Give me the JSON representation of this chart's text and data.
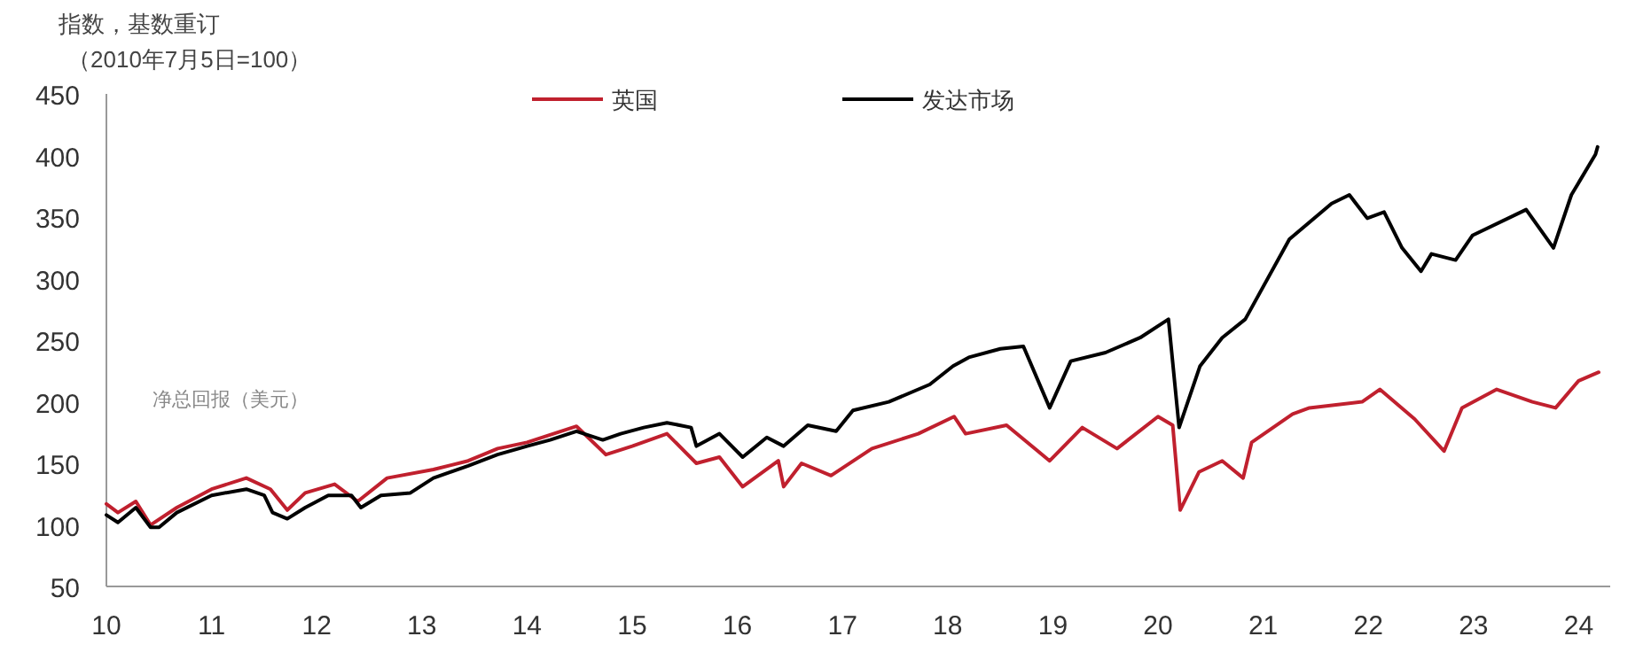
{
  "chart_data": {
    "type": "line",
    "ylabel": "指数，基数重订（2010年7月5日=100）",
    "annotations": [
      "净总回报（美元）"
    ],
    "xlim": [
      10,
      24.3
    ],
    "xticks": [
      10,
      11,
      12,
      13,
      14,
      15,
      16,
      17,
      18,
      19,
      20,
      21,
      22,
      23,
      24
    ],
    "ylim": [
      50,
      450
    ],
    "yticks": [
      50,
      100,
      150,
      200,
      250,
      300,
      350,
      400,
      450
    ],
    "legend": "top",
    "grid": false,
    "series": [
      {
        "name": "英国",
        "color": "#c0202e",
        "x": [
          10,
          10.11,
          10.28,
          10.42,
          10.67,
          11,
          11.33,
          11.56,
          11.72,
          11.89,
          12.17,
          12.39,
          12.67,
          13.11,
          13.44,
          13.72,
          14,
          14.47,
          14.75,
          15,
          15.33,
          15.61,
          15.83,
          16.05,
          16.39,
          16.44,
          16.61,
          16.89,
          17.28,
          17.72,
          18.06,
          18.17,
          18.56,
          18.97,
          19.28,
          19.61,
          20,
          20.14,
          20.21,
          20.39,
          20.61,
          20.81,
          20.89,
          21.28,
          21.44,
          21.94,
          22.11,
          22.44,
          22.72,
          22.89,
          23.22,
          23.56,
          23.78,
          24,
          24.19
        ],
        "values": [
          117,
          110,
          119,
          100,
          114,
          129,
          138,
          129,
          112,
          126,
          133,
          119,
          138,
          145,
          152,
          162,
          167,
          180,
          157,
          164,
          174,
          150,
          155,
          131,
          152,
          131,
          150,
          140,
          162,
          174,
          188,
          174,
          181,
          152,
          179,
          162,
          188,
          181,
          112,
          143,
          152,
          138,
          167,
          190,
          195,
          200,
          210,
          186,
          160,
          195,
          210,
          200,
          195,
          217,
          224
        ]
      },
      {
        "name": "发达市场",
        "color": "#000000",
        "x": [
          10,
          10.11,
          10.28,
          10.42,
          10.5,
          10.67,
          11,
          11.33,
          11.5,
          11.58,
          11.72,
          11.89,
          12.11,
          12.33,
          12.42,
          12.61,
          12.89,
          13.11,
          13.44,
          13.72,
          14,
          14.22,
          14.47,
          14.72,
          14.89,
          15.11,
          15.33,
          15.56,
          15.61,
          15.83,
          16.05,
          16.28,
          16.44,
          16.67,
          16.94,
          17.1,
          17.44,
          17.83,
          18.05,
          18.2,
          18.5,
          18.72,
          18.97,
          19.17,
          19.5,
          19.83,
          20.1,
          20.2,
          20.4,
          20.61,
          20.83,
          21.25,
          21.65,
          21.82,
          21.99,
          22.15,
          22.32,
          22.5,
          22.6,
          22.83,
          22.99,
          23.5,
          23.76,
          23.93,
          24.16,
          24.18
        ],
        "values": [
          108,
          102,
          114,
          98,
          98,
          110,
          124,
          129,
          124,
          110,
          105,
          114,
          124,
          124,
          114,
          124,
          126,
          138,
          148,
          157,
          164,
          169,
          176,
          169,
          174,
          179,
          183,
          179,
          164,
          174,
          155,
          171,
          164,
          181,
          176,
          193,
          200,
          214,
          229,
          236,
          243,
          245,
          195,
          233,
          240,
          252,
          267,
          179,
          229,
          252,
          267,
          332,
          361,
          368,
          349,
          354,
          325,
          306,
          320,
          315,
          335,
          356,
          325,
          368,
          401,
          407
        ]
      }
    ]
  }
}
